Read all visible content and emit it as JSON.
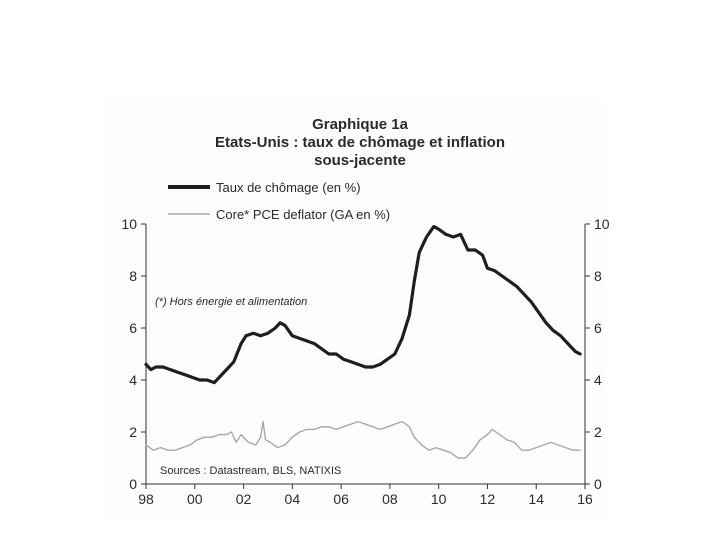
{
  "chart_data": {
    "type": "line",
    "title_lines": [
      "Graphique 1a",
      "Etats-Unis : taux de chômage et inflation",
      "sous-jacente"
    ],
    "annotation": "(*) Hors énergie et alimentation",
    "source": "Sources : Datastream, BLS, NATIXIS",
    "x_ticks": [
      "98",
      "00",
      "02",
      "04",
      "06",
      "08",
      "10",
      "12",
      "14",
      "16"
    ],
    "x_range": [
      1998,
      2016
    ],
    "y_left": {
      "ticks": [
        "0",
        "2",
        "4",
        "6",
        "8",
        "10"
      ],
      "range": [
        0,
        10
      ]
    },
    "y_right": {
      "ticks": [
        "0",
        "2",
        "4",
        "6",
        "8",
        "10"
      ],
      "range": [
        0,
        10
      ]
    },
    "grid": false,
    "legend_position": "top",
    "series": [
      {
        "name": "Taux de chômage (en %)",
        "color": "#1e1e1e",
        "line_style": "thick",
        "points": [
          [
            1998.0,
            4.6
          ],
          [
            1998.2,
            4.4
          ],
          [
            1998.4,
            4.5
          ],
          [
            1998.7,
            4.5
          ],
          [
            1999.0,
            4.4
          ],
          [
            1999.3,
            4.3
          ],
          [
            1999.6,
            4.2
          ],
          [
            1999.9,
            4.1
          ],
          [
            2000.2,
            4.0
          ],
          [
            2000.5,
            4.0
          ],
          [
            2000.8,
            3.9
          ],
          [
            2001.0,
            4.1
          ],
          [
            2001.3,
            4.4
          ],
          [
            2001.6,
            4.7
          ],
          [
            2001.9,
            5.4
          ],
          [
            2002.1,
            5.7
          ],
          [
            2002.4,
            5.8
          ],
          [
            2002.7,
            5.7
          ],
          [
            2003.0,
            5.8
          ],
          [
            2003.3,
            6.0
          ],
          [
            2003.5,
            6.2
          ],
          [
            2003.7,
            6.1
          ],
          [
            2004.0,
            5.7
          ],
          [
            2004.3,
            5.6
          ],
          [
            2004.6,
            5.5
          ],
          [
            2004.9,
            5.4
          ],
          [
            2005.2,
            5.2
          ],
          [
            2005.5,
            5.0
          ],
          [
            2005.8,
            5.0
          ],
          [
            2006.1,
            4.8
          ],
          [
            2006.4,
            4.7
          ],
          [
            2006.7,
            4.6
          ],
          [
            2007.0,
            4.5
          ],
          [
            2007.3,
            4.5
          ],
          [
            2007.6,
            4.6
          ],
          [
            2007.9,
            4.8
          ],
          [
            2008.2,
            5.0
          ],
          [
            2008.5,
            5.6
          ],
          [
            2008.8,
            6.5
          ],
          [
            2009.0,
            7.8
          ],
          [
            2009.2,
            8.9
          ],
          [
            2009.5,
            9.5
          ],
          [
            2009.8,
            9.9
          ],
          [
            2010.0,
            9.8
          ],
          [
            2010.3,
            9.6
          ],
          [
            2010.6,
            9.5
          ],
          [
            2010.9,
            9.6
          ],
          [
            2011.2,
            9.0
          ],
          [
            2011.5,
            9.0
          ],
          [
            2011.8,
            8.8
          ],
          [
            2012.0,
            8.3
          ],
          [
            2012.3,
            8.2
          ],
          [
            2012.6,
            8.0
          ],
          [
            2012.9,
            7.8
          ],
          [
            2013.2,
            7.6
          ],
          [
            2013.5,
            7.3
          ],
          [
            2013.8,
            7.0
          ],
          [
            2014.1,
            6.6
          ],
          [
            2014.4,
            6.2
          ],
          [
            2014.7,
            5.9
          ],
          [
            2015.0,
            5.7
          ],
          [
            2015.3,
            5.4
          ],
          [
            2015.6,
            5.1
          ],
          [
            2015.8,
            5.0
          ]
        ]
      },
      {
        "name": "Core* PCE deflator (GA en %)",
        "color": "#a8a8a8",
        "line_style": "thin",
        "points": [
          [
            1998.0,
            1.5
          ],
          [
            1998.3,
            1.3
          ],
          [
            1998.6,
            1.4
          ],
          [
            1998.9,
            1.3
          ],
          [
            1999.2,
            1.3
          ],
          [
            1999.5,
            1.4
          ],
          [
            1999.8,
            1.5
          ],
          [
            2000.1,
            1.7
          ],
          [
            2000.4,
            1.8
          ],
          [
            2000.7,
            1.8
          ],
          [
            2001.0,
            1.9
          ],
          [
            2001.3,
            1.9
          ],
          [
            2001.5,
            2.0
          ],
          [
            2001.7,
            1.6
          ],
          [
            2001.9,
            1.9
          ],
          [
            2002.2,
            1.6
          ],
          [
            2002.5,
            1.5
          ],
          [
            2002.7,
            1.8
          ],
          [
            2002.8,
            2.4
          ],
          [
            2002.9,
            1.7
          ],
          [
            2003.1,
            1.6
          ],
          [
            2003.4,
            1.4
          ],
          [
            2003.7,
            1.5
          ],
          [
            2004.0,
            1.8
          ],
          [
            2004.3,
            2.0
          ],
          [
            2004.6,
            2.1
          ],
          [
            2004.9,
            2.1
          ],
          [
            2005.2,
            2.2
          ],
          [
            2005.5,
            2.2
          ],
          [
            2005.8,
            2.1
          ],
          [
            2006.1,
            2.2
          ],
          [
            2006.4,
            2.3
          ],
          [
            2006.7,
            2.4
          ],
          [
            2007.0,
            2.3
          ],
          [
            2007.3,
            2.2
          ],
          [
            2007.6,
            2.1
          ],
          [
            2007.9,
            2.2
          ],
          [
            2008.2,
            2.3
          ],
          [
            2008.5,
            2.4
          ],
          [
            2008.8,
            2.2
          ],
          [
            2009.0,
            1.8
          ],
          [
            2009.3,
            1.5
          ],
          [
            2009.6,
            1.3
          ],
          [
            2009.9,
            1.4
          ],
          [
            2010.2,
            1.3
          ],
          [
            2010.5,
            1.2
          ],
          [
            2010.8,
            1.0
          ],
          [
            2011.1,
            1.0
          ],
          [
            2011.4,
            1.3
          ],
          [
            2011.7,
            1.7
          ],
          [
            2012.0,
            1.9
          ],
          [
            2012.2,
            2.1
          ],
          [
            2012.5,
            1.9
          ],
          [
            2012.8,
            1.7
          ],
          [
            2013.1,
            1.6
          ],
          [
            2013.4,
            1.3
          ],
          [
            2013.7,
            1.3
          ],
          [
            2014.0,
            1.4
          ],
          [
            2014.3,
            1.5
          ],
          [
            2014.6,
            1.6
          ],
          [
            2014.9,
            1.5
          ],
          [
            2015.2,
            1.4
          ],
          [
            2015.5,
            1.3
          ],
          [
            2015.8,
            1.3
          ]
        ]
      }
    ]
  }
}
